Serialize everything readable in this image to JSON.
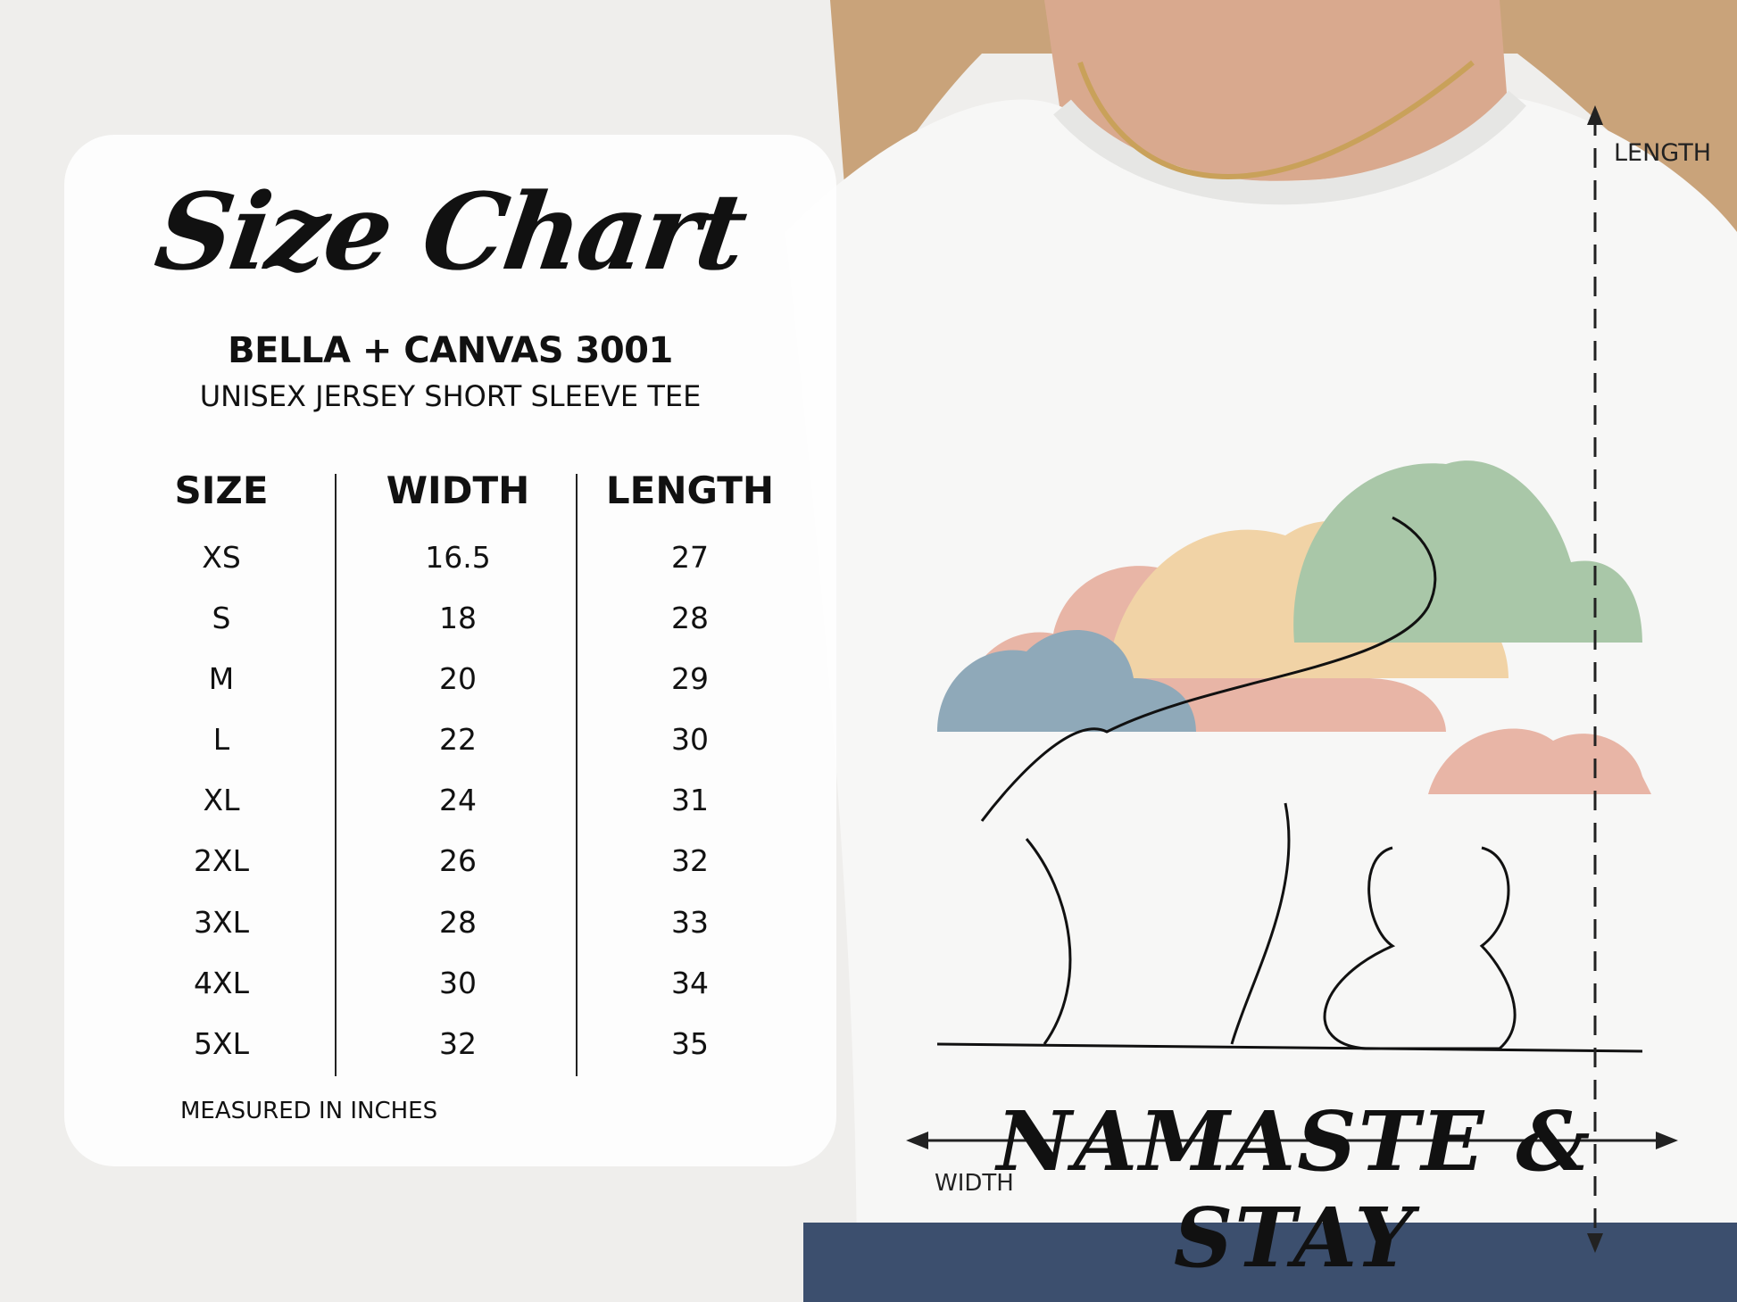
{
  "chart": {
    "title": "Size Chart",
    "brand": "BELLA + CANVAS 3001",
    "subtitle": "UNISEX JERSEY SHORT SLEEVE TEE",
    "headers": [
      "SIZE",
      "WIDTH",
      "LENGTH"
    ],
    "sizes": [
      "XS",
      "S",
      "M",
      "L",
      "XL",
      "2XL",
      "3XL",
      "4XL",
      "5XL"
    ],
    "widths": [
      "16.5",
      "18",
      "20",
      "22",
      "24",
      "26",
      "28",
      "30",
      "32"
    ],
    "lengths": [
      "27",
      "28",
      "29",
      "30",
      "31",
      "32",
      "33",
      "34",
      "35"
    ],
    "footnote": "MEASURED IN INCHES"
  },
  "shirt": {
    "slogan": "NAMASTE & STAY",
    "length_label": "LENGTH",
    "width_label": "WIDTH",
    "cloud_colors": [
      "#e8b5a6",
      "#f1d3a6",
      "#a9c7a8",
      "#8fa9b9"
    ]
  }
}
